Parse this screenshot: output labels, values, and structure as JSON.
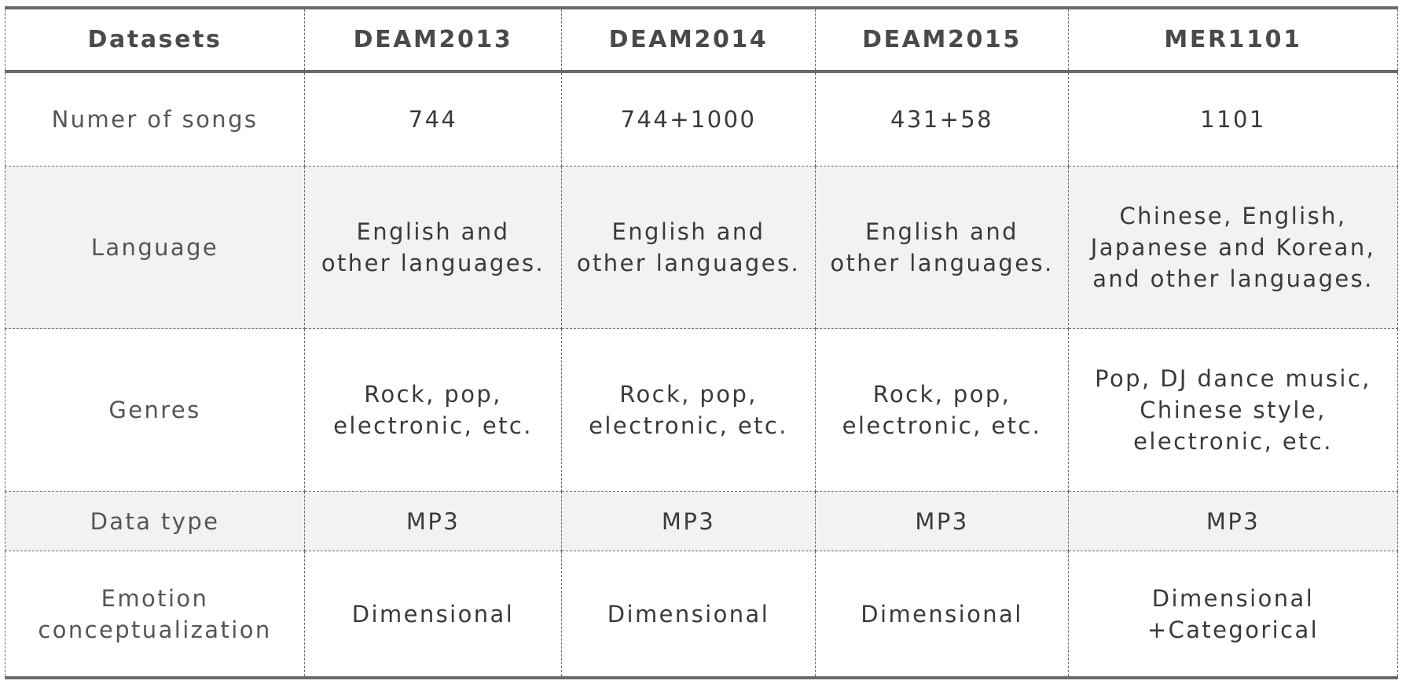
{
  "table": {
    "headers": [
      "Datasets",
      "DEAM2013",
      "DEAM2014",
      "DEAM2015",
      "MER1101"
    ],
    "rows": [
      {
        "label": [
          "Numer of songs"
        ],
        "cells": [
          [
            "744"
          ],
          [
            "744+1000"
          ],
          [
            "431+58"
          ],
          [
            "1101"
          ]
        ]
      },
      {
        "label": [
          "Language"
        ],
        "cells": [
          [
            "English and",
            "other languages."
          ],
          [
            "English and",
            "other languages."
          ],
          [
            "English and",
            "other languages."
          ],
          [
            "Chinese, English,",
            "Japanese and Korean,",
            "and other languages."
          ]
        ]
      },
      {
        "label": [
          "Genres"
        ],
        "cells": [
          [
            "Rock, pop,",
            "electronic, etc."
          ],
          [
            "Rock, pop,",
            "electronic, etc."
          ],
          [
            "Rock, pop,",
            "electronic, etc."
          ],
          [
            "Pop, DJ dance music,",
            "Chinese style,",
            "electronic, etc."
          ]
        ]
      },
      {
        "label": [
          "Data type"
        ],
        "cells": [
          [
            "MP3"
          ],
          [
            "MP3"
          ],
          [
            "MP3"
          ],
          [
            "MP3"
          ]
        ]
      },
      {
        "label": [
          "Emotion",
          "conceptualization"
        ],
        "cells": [
          [
            "Dimensional"
          ],
          [
            "Dimensional"
          ],
          [
            "Dimensional"
          ],
          [
            "Dimensional",
            "+Categorical"
          ]
        ]
      }
    ]
  }
}
